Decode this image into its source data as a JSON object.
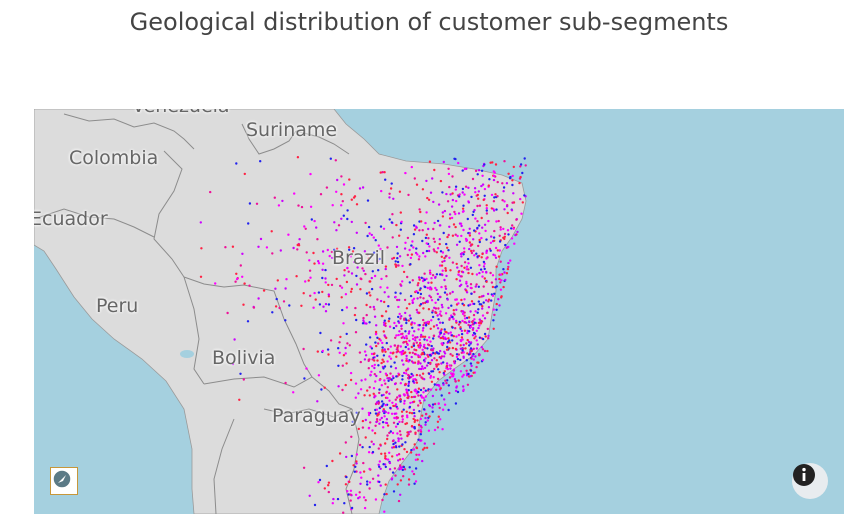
{
  "title": "Geological distribution of customer sub-segments",
  "map": {
    "labels": {
      "venezuela": "Venezuela",
      "suriname": "Suriname",
      "colombia": "Colombia",
      "ecuador": "Ecuador",
      "brazil": "Brazil",
      "peru": "Peru",
      "bolivia": "Bolivia",
      "paraguay": "Paraguay"
    },
    "colors": {
      "ocean": "#a5d0df",
      "land": "#dcdcdc",
      "border": "#8c8c8c",
      "segment_colors": [
        "#ff00ff",
        "#cc00ff",
        "#2222ee",
        "#ff2244",
        "#ee1199"
      ]
    },
    "controls": {
      "compass_icon": "compass-reset-icon",
      "info_icon": "info-icon"
    }
  }
}
